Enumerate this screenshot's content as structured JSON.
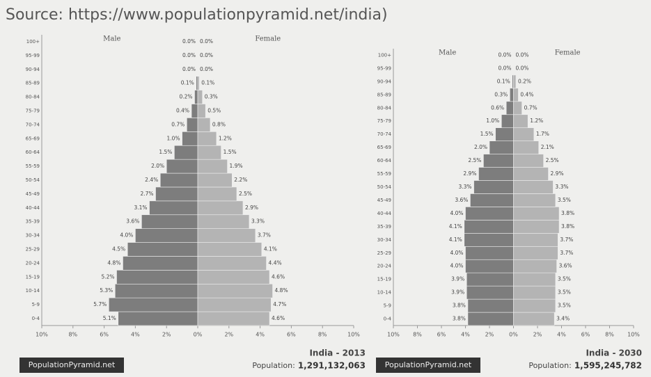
{
  "source": "Source: https://www.populationpyramid.net/india)",
  "chart_data": [
    {
      "type": "pyramid",
      "title": "India - 2013",
      "population_label": "Population:",
      "population": "1,291,132,063",
      "brand": "PopulationPyramid.net",
      "categories": [
        "0-4",
        "5-9",
        "10-14",
        "15-19",
        "20-24",
        "25-29",
        "30-34",
        "35-39",
        "40-44",
        "45-49",
        "50-54",
        "55-59",
        "60-64",
        "65-69",
        "70-74",
        "75-79",
        "80-84",
        "85-89",
        "90-94",
        "95-99",
        "100+"
      ],
      "series": [
        {
          "name": "Male",
          "color": "#7d7d7d",
          "values": [
            5.1,
            5.7,
            5.3,
            5.2,
            4.8,
            4.5,
            4.0,
            3.6,
            3.1,
            2.7,
            2.4,
            2.0,
            1.5,
            1.0,
            0.7,
            0.4,
            0.2,
            0.1,
            0.0,
            0.0,
            0.0
          ],
          "value_labels": [
            "5.1%",
            "5.7%",
            "5.3%",
            "5.2%",
            "4.8%",
            "4.5%",
            "4.0%",
            "3.6%",
            "3.1%",
            "2.7%",
            "2.4%",
            "2.0%",
            "1.5%",
            "1.0%",
            "0.7%",
            "0.4%",
            "0.2%",
            "0.1%",
            "0.0%",
            "0.0%",
            "0.0%"
          ]
        },
        {
          "name": "Female",
          "color": "#b4b4b4",
          "values": [
            4.6,
            4.7,
            4.8,
            4.6,
            4.4,
            4.1,
            3.7,
            3.3,
            2.9,
            2.5,
            2.2,
            1.9,
            1.5,
            1.2,
            0.8,
            0.5,
            0.3,
            0.1,
            0.0,
            0.0,
            0.0
          ],
          "value_labels": [
            "4.6%",
            "4.7%",
            "4.8%",
            "4.6%",
            "4.4%",
            "4.1%",
            "3.7%",
            "3.3%",
            "2.9%",
            "2.5%",
            "2.2%",
            "1.9%",
            "1.5%",
            "1.2%",
            "0.8%",
            "0.5%",
            "0.3%",
            "0.1%",
            "0.0%",
            "0.0%",
            "0.0%"
          ]
        }
      ],
      "xlim": [
        -10,
        10
      ],
      "xticks": [
        {
          "value": -10,
          "label": "10%"
        },
        {
          "value": -8,
          "label": "8%"
        },
        {
          "value": -6,
          "label": "6%"
        },
        {
          "value": -4,
          "label": "4%"
        },
        {
          "value": -2,
          "label": "2%"
        },
        {
          "value": 0,
          "label": "0%"
        },
        {
          "value": 2,
          "label": "2%"
        },
        {
          "value": 4,
          "label": "4%"
        },
        {
          "value": 6,
          "label": "6%"
        },
        {
          "value": 8,
          "label": "8%"
        },
        {
          "value": 10,
          "label": "10%"
        }
      ]
    },
    {
      "type": "pyramid",
      "title": "India - 2030",
      "population_label": "Population:",
      "population": "1,595,245,782",
      "brand": "PopulationPyramid.net",
      "categories": [
        "0-4",
        "5-9",
        "10-14",
        "15-19",
        "20-24",
        "25-29",
        "30-34",
        "35-39",
        "40-44",
        "45-49",
        "50-54",
        "55-59",
        "60-64",
        "65-69",
        "70-74",
        "75-79",
        "80-84",
        "85-89",
        "90-94",
        "95-99",
        "100+"
      ],
      "series": [
        {
          "name": "Male",
          "color": "#7d7d7d",
          "values": [
            3.8,
            3.8,
            3.9,
            3.9,
            4.0,
            4.0,
            4.1,
            4.1,
            4.0,
            3.6,
            3.3,
            2.9,
            2.5,
            2.0,
            1.5,
            1.0,
            0.6,
            0.3,
            0.1,
            0.0,
            0.0
          ],
          "value_labels": [
            "3.8%",
            "3.8%",
            "3.9%",
            "3.9%",
            "4.0%",
            "4.0%",
            "4.1%",
            "4.1%",
            "4.0%",
            "3.6%",
            "3.3%",
            "2.9%",
            "2.5%",
            "2.0%",
            "1.5%",
            "1.0%",
            "0.6%",
            "0.3%",
            "0.1%",
            "0.0%",
            "0.0%"
          ]
        },
        {
          "name": "Female",
          "color": "#b4b4b4",
          "values": [
            3.4,
            3.5,
            3.5,
            3.5,
            3.6,
            3.7,
            3.7,
            3.8,
            3.8,
            3.5,
            3.3,
            2.9,
            2.5,
            2.1,
            1.7,
            1.2,
            0.7,
            0.4,
            0.2,
            0.0,
            0.0
          ],
          "value_labels": [
            "3.4%",
            "3.5%",
            "3.5%",
            "3.5%",
            "3.6%",
            "3.7%",
            "3.7%",
            "3.8%",
            "3.8%",
            "3.5%",
            "3.3%",
            "2.9%",
            "2.5%",
            "2.1%",
            "1.7%",
            "1.2%",
            "0.7%",
            "0.4%",
            "0.2%",
            "0.0%",
            "0.0%"
          ]
        }
      ],
      "xlim": [
        -10,
        10
      ],
      "xticks": [
        {
          "value": -10,
          "label": "10%"
        },
        {
          "value": -8,
          "label": "8%"
        },
        {
          "value": -6,
          "label": "6%"
        },
        {
          "value": -4,
          "label": "4%"
        },
        {
          "value": -2,
          "label": "2%"
        },
        {
          "value": 0,
          "label": "0%"
        },
        {
          "value": 2,
          "label": "2%"
        },
        {
          "value": 4,
          "label": "4%"
        },
        {
          "value": 6,
          "label": "6%"
        },
        {
          "value": 8,
          "label": "8%"
        },
        {
          "value": 10,
          "label": "10%"
        }
      ]
    }
  ]
}
